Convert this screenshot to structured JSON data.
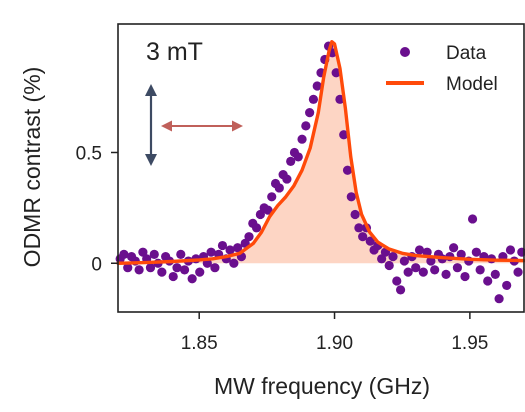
{
  "chart_data": {
    "type": "scatter",
    "title": "",
    "annotation": "3 mT",
    "xlabel": "MW frequency (GHz)",
    "ylabel": "ODMR contrast (%)",
    "xlim": [
      1.82,
      1.97
    ],
    "ylim": [
      -0.22,
      1.08
    ],
    "xticks": [
      {
        "value": 1.85,
        "label": "1.85"
      },
      {
        "value": 1.9,
        "label": "1.90"
      },
      {
        "value": 1.95,
        "label": "1.95"
      }
    ],
    "yticks": [
      {
        "value": 0,
        "label": "0"
      },
      {
        "value": 0.5,
        "label": "0.5"
      }
    ],
    "grid": false,
    "legend_position": "top-right",
    "colors": {
      "data": "#6a0f8e",
      "model": "#ff4a0a",
      "fill": "#fdd5c4",
      "vertical_arrow": "#3d4a63",
      "horizontal_arrow": "#c0605a"
    },
    "series": [
      {
        "name": "Data",
        "kind": "scatter",
        "points": [
          [
            1.8208,
            0.02
          ],
          [
            1.8222,
            0.04
          ],
          [
            1.8236,
            -0.02
          ],
          [
            1.825,
            0.03
          ],
          [
            1.8264,
            0.01
          ],
          [
            1.8278,
            -0.03
          ],
          [
            1.8292,
            0.05
          ],
          [
            1.8306,
            0.02
          ],
          [
            1.832,
            -0.02
          ],
          [
            1.8334,
            0.04
          ],
          [
            1.8348,
            0.0
          ],
          [
            1.8362,
            -0.04
          ],
          [
            1.8376,
            0.03
          ],
          [
            1.839,
            0.01
          ],
          [
            1.8404,
            -0.06
          ],
          [
            1.8418,
            -0.02
          ],
          [
            1.8432,
            0.04
          ],
          [
            1.8446,
            -0.03
          ],
          [
            1.846,
            0.01
          ],
          [
            1.8474,
            -0.07
          ],
          [
            1.8488,
            0.02
          ],
          [
            1.8502,
            -0.04
          ],
          [
            1.8516,
            0.03
          ],
          [
            1.853,
            0.0
          ],
          [
            1.8544,
            0.05
          ],
          [
            1.8558,
            -0.02
          ],
          [
            1.8572,
            0.04
          ],
          [
            1.8586,
            0.08
          ],
          [
            1.86,
            0.02
          ],
          [
            1.8614,
            0.06
          ],
          [
            1.8628,
            0.0
          ],
          [
            1.8642,
            0.07
          ],
          [
            1.8656,
            0.03
          ],
          [
            1.867,
            0.09
          ],
          [
            1.8684,
            0.12
          ],
          [
            1.8698,
            0.18
          ],
          [
            1.8712,
            0.16
          ],
          [
            1.8726,
            0.22
          ],
          [
            1.874,
            0.25
          ],
          [
            1.8754,
            0.24
          ],
          [
            1.8768,
            0.3
          ],
          [
            1.8782,
            0.36
          ],
          [
            1.8796,
            0.34
          ],
          [
            1.881,
            0.4
          ],
          [
            1.8824,
            0.38
          ],
          [
            1.8838,
            0.46
          ],
          [
            1.8852,
            0.5
          ],
          [
            1.8866,
            0.48
          ],
          [
            1.888,
            0.56
          ],
          [
            1.8894,
            0.62
          ],
          [
            1.8908,
            0.68
          ],
          [
            1.8922,
            0.74
          ],
          [
            1.8936,
            0.8
          ],
          [
            1.895,
            0.86
          ],
          [
            1.8964,
            0.92
          ],
          [
            1.8978,
            0.98
          ],
          [
            1.8992,
            0.95
          ],
          [
            1.9006,
            0.86
          ],
          [
            1.902,
            0.74
          ],
          [
            1.9034,
            0.58
          ],
          [
            1.9048,
            0.42
          ],
          [
            1.9062,
            0.3
          ],
          [
            1.9076,
            0.22
          ],
          [
            1.909,
            0.16
          ],
          [
            1.9104,
            0.12
          ],
          [
            1.9118,
            0.16
          ],
          [
            1.9132,
            0.1
          ],
          [
            1.9146,
            0.06
          ],
          [
            1.916,
            0.08
          ],
          [
            1.9174,
            0.02
          ],
          [
            1.9188,
            0.05
          ],
          [
            1.9202,
            -0.01
          ],
          [
            1.9216,
            0.03
          ],
          [
            1.923,
            -0.08
          ],
          [
            1.9244,
            -0.12
          ],
          [
            1.9258,
            0.01
          ],
          [
            1.9272,
            -0.04
          ],
          [
            1.9286,
            0.03
          ],
          [
            1.93,
            -0.02
          ],
          [
            1.9314,
            0.06
          ],
          [
            1.9328,
            -0.04
          ],
          [
            1.9342,
            0.05
          ],
          [
            1.9356,
            0.01
          ],
          [
            1.937,
            -0.03
          ],
          [
            1.9384,
            0.04
          ],
          [
            1.9398,
            0.02
          ],
          [
            1.9412,
            -0.05
          ],
          [
            1.9426,
            0.03
          ],
          [
            1.944,
            0.07
          ],
          [
            1.9454,
            -0.02
          ],
          [
            1.9468,
            0.04
          ],
          [
            1.9482,
            -0.06
          ],
          [
            1.9496,
            0.01
          ],
          [
            1.951,
            0.2
          ],
          [
            1.9524,
            0.05
          ],
          [
            1.9538,
            -0.03
          ],
          [
            1.9552,
            0.03
          ],
          [
            1.9566,
            -0.08
          ],
          [
            1.958,
            0.02
          ],
          [
            1.9594,
            -0.05
          ],
          [
            1.9608,
            -0.16
          ],
          [
            1.9622,
            0.03
          ],
          [
            1.9636,
            -0.1
          ],
          [
            1.965,
            0.06
          ],
          [
            1.9664,
            0.01
          ],
          [
            1.9678,
            -0.04
          ],
          [
            1.9692,
            0.05
          ]
        ]
      },
      {
        "name": "Model",
        "kind": "line",
        "points": [
          [
            1.82,
            0.0
          ],
          [
            1.83,
            0.003
          ],
          [
            1.84,
            0.008
          ],
          [
            1.85,
            0.015
          ],
          [
            1.855,
            0.02
          ],
          [
            1.86,
            0.03
          ],
          [
            1.865,
            0.045
          ],
          [
            1.87,
            0.09
          ],
          [
            1.873,
            0.14
          ],
          [
            1.876,
            0.21
          ],
          [
            1.879,
            0.26
          ],
          [
            1.882,
            0.3
          ],
          [
            1.885,
            0.35
          ],
          [
            1.888,
            0.42
          ],
          [
            1.891,
            0.52
          ],
          [
            1.894,
            0.68
          ],
          [
            1.896,
            0.84
          ],
          [
            1.898,
            0.96
          ],
          [
            1.899,
            1.0
          ],
          [
            1.9,
            0.99
          ],
          [
            1.902,
            0.88
          ],
          [
            1.904,
            0.7
          ],
          [
            1.906,
            0.48
          ],
          [
            1.908,
            0.32
          ],
          [
            1.91,
            0.22
          ],
          [
            1.913,
            0.14
          ],
          [
            1.916,
            0.095
          ],
          [
            1.92,
            0.065
          ],
          [
            1.925,
            0.045
          ],
          [
            1.93,
            0.035
          ],
          [
            1.94,
            0.025
          ],
          [
            1.95,
            0.018
          ],
          [
            1.96,
            0.014
          ],
          [
            1.97,
            0.012
          ]
        ]
      }
    ]
  }
}
